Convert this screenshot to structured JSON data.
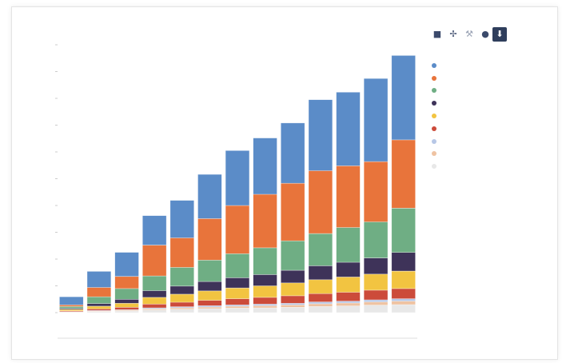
{
  "toolbar": {
    "icons": [
      "zoom-icon",
      "pan-icon",
      "wrench-icon",
      "reset-icon",
      "download-icon"
    ]
  },
  "legend": {
    "title": ""
  },
  "chart_data": {
    "type": "bar",
    "stacked": true,
    "title": "",
    "xlabel": "",
    "ylabel": "",
    "ylim": [
      0,
      1000
    ],
    "grid": false,
    "legend_position": "right",
    "categories": [
      "",
      "",
      "",
      "",
      "",
      "",
      "",
      "",
      "",
      "",
      "",
      "",
      ""
    ],
    "x_tick_labels": [
      "",
      "",
      "",
      "",
      "",
      ""
    ],
    "series": [
      {
        "name": "",
        "color": "#e8e8e8",
        "values": [
          2,
          4,
          6,
          10,
          13,
          15,
          17,
          18,
          20,
          23,
          25,
          28,
          30
        ]
      },
      {
        "name": "",
        "color": "#efc3a2",
        "values": [
          1,
          2,
          3,
          4,
          5,
          6,
          7,
          8,
          9,
          10,
          11,
          12,
          13
        ]
      },
      {
        "name": "",
        "color": "#b7c7e6",
        "values": [
          1,
          2,
          2,
          4,
          4,
          5,
          5,
          6,
          6,
          7,
          7,
          8,
          9
        ]
      },
      {
        "name": "",
        "color": "#cc4b3a",
        "values": [
          3,
          6,
          9,
          14,
          17,
          20,
          23,
          25,
          28,
          31,
          33,
          36,
          38
        ]
      },
      {
        "name": "",
        "color": "#f2c441",
        "values": [
          5,
          10,
          15,
          25,
          30,
          35,
          40,
          43,
          48,
          52,
          57,
          60,
          65
        ]
      },
      {
        "name": "",
        "color": "#3e3359",
        "values": [
          4,
          10,
          15,
          25,
          30,
          35,
          38,
          42,
          47,
          52,
          55,
          60,
          70
        ]
      },
      {
        "name": "",
        "color": "#6fae84",
        "values": [
          7,
          25,
          40,
          55,
          70,
          80,
          90,
          100,
          110,
          120,
          130,
          135,
          165
        ]
      },
      {
        "name": "",
        "color": "#e8743b",
        "values": [
          6,
          35,
          45,
          115,
          110,
          155,
          180,
          200,
          215,
          235,
          230,
          225,
          255
        ]
      },
      {
        "name": "",
        "color": "#5b8cc8",
        "values": [
          30,
          60,
          90,
          110,
          140,
          165,
          205,
          210,
          225,
          265,
          275,
          310,
          315
        ]
      }
    ]
  }
}
